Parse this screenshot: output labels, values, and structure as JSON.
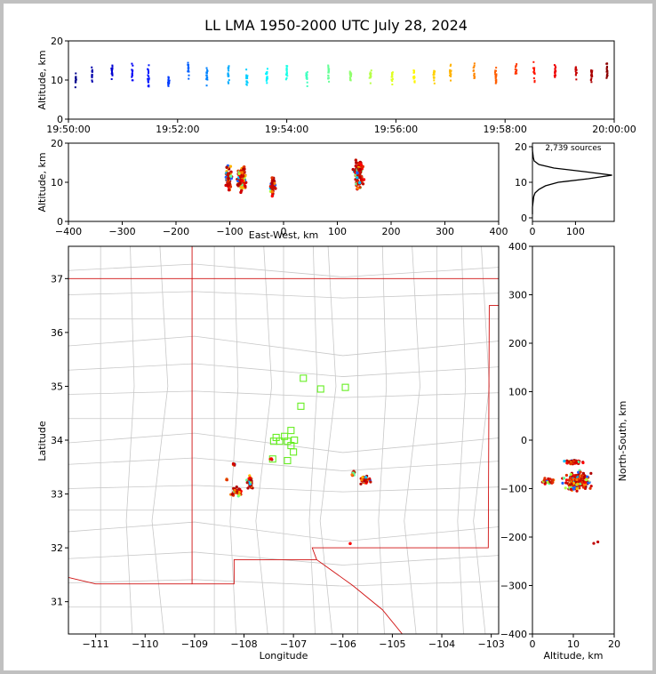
{
  "title": "LL LMA 1950-2000 UTC July 28, 2024",
  "chart_data": [
    {
      "type": "scatter",
      "name": "time-altitude",
      "ylabel": "Altitude, km",
      "xlabel": "",
      "xlim": [
        0,
        600
      ],
      "ylim": [
        0,
        20
      ],
      "xticks": [
        0,
        120,
        240,
        360,
        480,
        600
      ],
      "xtick_labels": [
        "19:50:00",
        "19:52:00",
        "19:54:00",
        "19:56:00",
        "19:58:00",
        "20:00:00"
      ],
      "yticks": [
        0,
        10,
        20
      ],
      "ytick_labels": [
        "0",
        "10",
        "20"
      ],
      "color_by": "time",
      "groups": [
        {
          "t": 8,
          "center": 10,
          "spread": 3,
          "n": 12
        },
        {
          "t": 26,
          "center": 11,
          "spread": 3,
          "n": 14
        },
        {
          "t": 48,
          "center": 12,
          "spread": 3,
          "n": 16
        },
        {
          "t": 70,
          "center": 12,
          "spread": 3,
          "n": 12
        },
        {
          "t": 88,
          "center": 11,
          "spread": 4,
          "n": 16
        },
        {
          "t": 110,
          "center": 10,
          "spread": 3,
          "n": 14
        },
        {
          "t": 132,
          "center": 12,
          "spread": 3,
          "n": 16
        },
        {
          "t": 152,
          "center": 11,
          "spread": 3,
          "n": 16
        },
        {
          "t": 176,
          "center": 12,
          "spread": 3,
          "n": 16
        },
        {
          "t": 196,
          "center": 11,
          "spread": 3,
          "n": 16
        },
        {
          "t": 218,
          "center": 11,
          "spread": 3,
          "n": 16
        },
        {
          "t": 240,
          "center": 12,
          "spread": 3,
          "n": 18
        },
        {
          "t": 262,
          "center": 11,
          "spread": 3,
          "n": 16
        },
        {
          "t": 286,
          "center": 12,
          "spread": 3,
          "n": 18
        },
        {
          "t": 310,
          "center": 11,
          "spread": 3,
          "n": 16
        },
        {
          "t": 332,
          "center": 11,
          "spread": 3,
          "n": 16
        },
        {
          "t": 356,
          "center": 11,
          "spread": 3,
          "n": 14
        },
        {
          "t": 380,
          "center": 11,
          "spread": 3,
          "n": 14
        },
        {
          "t": 402,
          "center": 11,
          "spread": 3,
          "n": 14
        },
        {
          "t": 420,
          "center": 12,
          "spread": 3,
          "n": 14
        },
        {
          "t": 446,
          "center": 12,
          "spread": 3,
          "n": 14
        },
        {
          "t": 470,
          "center": 11,
          "spread": 3,
          "n": 20
        },
        {
          "t": 492,
          "center": 12,
          "spread": 3,
          "n": 16
        },
        {
          "t": 512,
          "center": 12,
          "spread": 3,
          "n": 14
        },
        {
          "t": 535,
          "center": 12,
          "spread": 3,
          "n": 18
        },
        {
          "t": 558,
          "center": 12,
          "spread": 3,
          "n": 14
        },
        {
          "t": 575,
          "center": 11,
          "spread": 3,
          "n": 18
        },
        {
          "t": 592,
          "center": 12,
          "spread": 3,
          "n": 22
        }
      ]
    },
    {
      "type": "scatter",
      "name": "east-west-altitude",
      "ylabel": "Altitude, km",
      "xlabel": "East-West, km",
      "xlim": [
        -400,
        400
      ],
      "ylim": [
        0,
        20
      ],
      "xticks": [
        -400,
        -300,
        -200,
        -100,
        0,
        100,
        200,
        300,
        400
      ],
      "xtick_labels": [
        "−400",
        "−300",
        "−200",
        "−100",
        "0",
        "100",
        "200",
        "300",
        "400"
      ],
      "yticks": [
        0,
        10,
        20
      ],
      "ytick_labels": [
        "0",
        "10",
        "20"
      ],
      "clusters": [
        {
          "x": -102,
          "xspread": 8,
          "z": 11,
          "zspread": 4,
          "n": 70
        },
        {
          "x": -78,
          "xspread": 10,
          "z": 11,
          "zspread": 4,
          "n": 110
        },
        {
          "x": -20,
          "xspread": 6,
          "z": 9,
          "zspread": 3,
          "n": 50
        },
        {
          "x": 140,
          "xspread": 12,
          "z": 12,
          "zspread": 5,
          "n": 110
        }
      ]
    },
    {
      "type": "line",
      "name": "altitude-histogram",
      "annotation": "2,739 sources",
      "xlim": [
        0,
        190
      ],
      "ylim": [
        -1,
        21
      ],
      "xticks": [
        0,
        100
      ],
      "xtick_labels": [
        "0",
        "100"
      ],
      "yticks": [
        0,
        10,
        20
      ],
      "ytick_labels": [
        "0",
        "10",
        "20"
      ],
      "profile": [
        [
          0,
          1
        ],
        [
          0,
          2
        ],
        [
          0,
          3
        ],
        [
          1,
          4
        ],
        [
          2,
          5
        ],
        [
          3,
          6
        ],
        [
          6,
          7
        ],
        [
          15,
          8
        ],
        [
          30,
          9
        ],
        [
          60,
          10
        ],
        [
          130,
          11
        ],
        [
          185,
          12
        ],
        [
          120,
          13
        ],
        [
          50,
          14
        ],
        [
          15,
          15
        ],
        [
          4,
          16
        ],
        [
          2,
          17
        ],
        [
          1,
          18
        ],
        [
          0,
          19
        ],
        [
          0,
          20
        ]
      ]
    },
    {
      "type": "map",
      "name": "plan-view",
      "xlabel": "Longitude",
      "ylabel": "Latitude",
      "xlim": [
        -111.55,
        -102.85
      ],
      "ylim": [
        30.4,
        37.6
      ],
      "xticks": [
        -111,
        -110,
        -109,
        -108,
        -107,
        -106,
        -105,
        -104,
        -103
      ],
      "xtick_labels": [
        "−111",
        "−110",
        "−109",
        "−108",
        "−107",
        "−106",
        "−105",
        "−104",
        "−103"
      ],
      "yticks": [
        31,
        32,
        33,
        34,
        35,
        36,
        37
      ],
      "ytick_labels": [
        "31",
        "32",
        "33",
        "34",
        "35",
        "36",
        "37"
      ],
      "stations": [
        [
          -106.8,
          35.15
        ],
        [
          -106.45,
          34.95
        ],
        [
          -105.95,
          34.98
        ],
        [
          -106.85,
          34.63
        ],
        [
          -107.05,
          34.18
        ],
        [
          -107.18,
          34.07
        ],
        [
          -107.35,
          34.05
        ],
        [
          -107.4,
          33.98
        ],
        [
          -107.28,
          33.98
        ],
        [
          -107.12,
          33.98
        ],
        [
          -106.98,
          34.0
        ],
        [
          -107.05,
          33.9
        ],
        [
          -107.0,
          33.78
        ],
        [
          -107.12,
          33.62
        ],
        [
          -107.42,
          33.65
        ]
      ],
      "clusters": [
        {
          "lon": -108.15,
          "lat": 33.05,
          "dlon": 0.15,
          "dlat": 0.12,
          "n": 45
        },
        {
          "lon": -107.88,
          "lat": 33.22,
          "dlon": 0.08,
          "dlat": 0.15,
          "n": 35
        },
        {
          "lon": -108.2,
          "lat": 33.55,
          "dlon": 0.04,
          "dlat": 0.03,
          "n": 8
        },
        {
          "lon": -108.35,
          "lat": 33.27,
          "dlon": 0.03,
          "dlat": 0.02,
          "n": 4
        },
        {
          "lon": -105.55,
          "lat": 33.25,
          "dlon": 0.15,
          "dlat": 0.1,
          "n": 40
        },
        {
          "lon": -105.78,
          "lat": 33.38,
          "dlon": 0.06,
          "dlat": 0.06,
          "n": 10
        },
        {
          "lon": -107.45,
          "lat": 33.65,
          "dlon": 0.03,
          "dlat": 0.02,
          "n": 4
        },
        {
          "lon": -105.85,
          "lat": 32.08,
          "dlon": 0.01,
          "dlat": 0.01,
          "n": 2
        }
      ]
    },
    {
      "type": "scatter",
      "name": "altitude-north-south",
      "xlabel": "Altitude, km",
      "ylabel": "North-South, km",
      "xlim": [
        0,
        20
      ],
      "ylim": [
        -400,
        400
      ],
      "xticks": [
        0,
        10,
        20
      ],
      "xtick_labels": [
        "0",
        "10",
        "20"
      ],
      "yticks": [
        -400,
        -300,
        -200,
        -100,
        0,
        100,
        200,
        300,
        400
      ],
      "ytick_labels": [
        "−400",
        "−300",
        "−200",
        "−100",
        "0",
        "100",
        "200",
        "300",
        "400"
      ],
      "clusters": [
        {
          "z": 11,
          "zspread": 4,
          "y": -85,
          "yspread": 25,
          "n": 240
        },
        {
          "z": 10,
          "zspread": 3,
          "y": -45,
          "yspread": 6,
          "n": 60
        },
        {
          "z": 4,
          "zspread": 3,
          "y": -85,
          "yspread": 10,
          "n": 25
        }
      ],
      "outliers": [
        [
          15,
          -213
        ],
        [
          16,
          -210
        ]
      ]
    }
  ]
}
